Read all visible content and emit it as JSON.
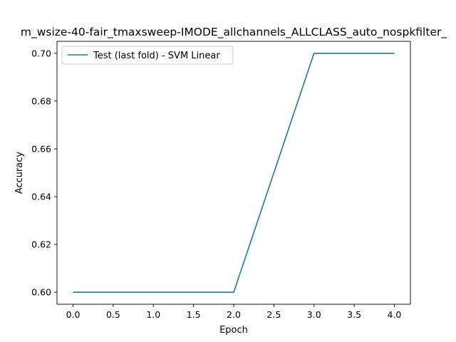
{
  "chart_data": {
    "type": "line",
    "title": "m_wsize-40-fair_tmaxsweep-IMODE_allchannels_ALLCLASS_auto_nospkfilter_",
    "xlabel": "Epoch",
    "ylabel": "Accuracy",
    "xlim": [
      -0.2,
      4.2
    ],
    "ylim": [
      0.595,
      0.705
    ],
    "xticks": [
      0.0,
      0.5,
      1.0,
      1.5,
      2.0,
      2.5,
      3.0,
      3.5,
      4.0
    ],
    "xtick_labels": [
      "0.0",
      "0.5",
      "1.0",
      "1.5",
      "2.0",
      "2.5",
      "3.0",
      "3.5",
      "4.0"
    ],
    "yticks": [
      0.6,
      0.62,
      0.64,
      0.66,
      0.68,
      0.7
    ],
    "ytick_labels": [
      "0.60",
      "0.62",
      "0.64",
      "0.66",
      "0.68",
      "0.70"
    ],
    "grid": false,
    "legend_position": "top-left",
    "series": [
      {
        "name": "Test (last fold) - SVM Linear",
        "color": "#1f77b4",
        "x": [
          0,
          1,
          2,
          3,
          4
        ],
        "y": [
          0.6,
          0.6,
          0.6,
          0.7,
          0.7
        ]
      }
    ]
  }
}
